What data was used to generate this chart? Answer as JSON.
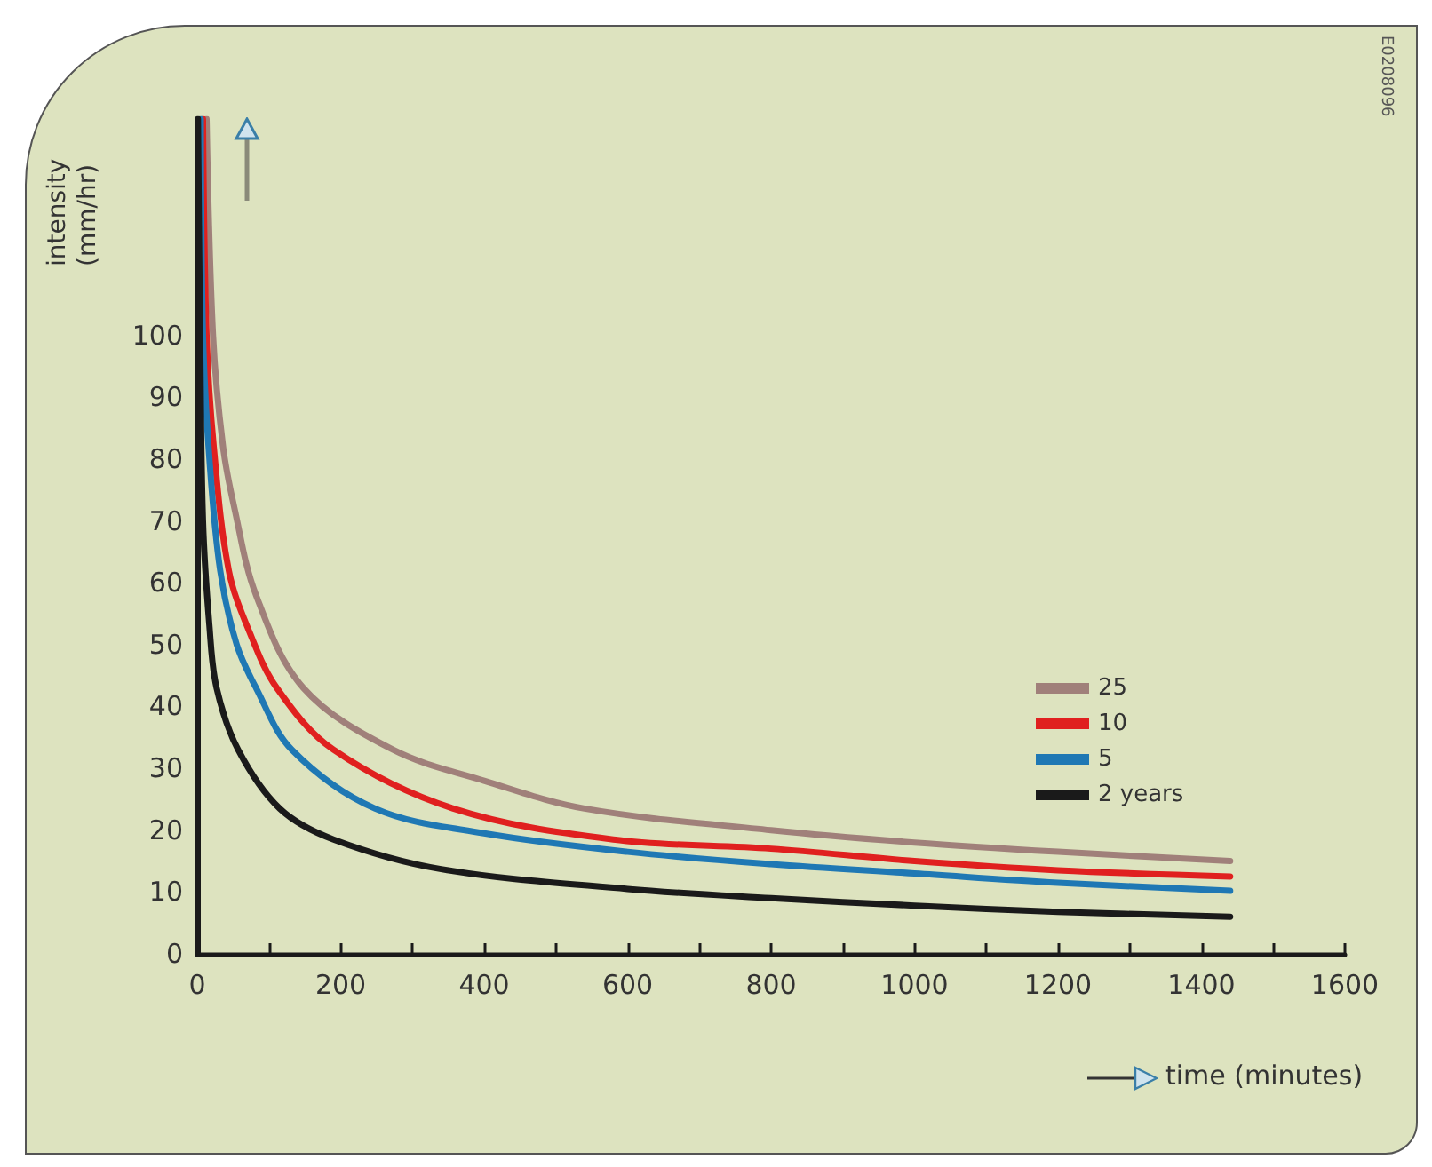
{
  "chart_data": {
    "type": "line",
    "xlabel": "time (minutes)",
    "ylabel": "intensity\n(mm/hr)",
    "annotations": [
      "E0208096"
    ],
    "xlim": [
      0,
      1600
    ],
    "ylim": [
      0,
      135
    ],
    "xticks": [
      0,
      {
        "value": 100,
        "label": null
      },
      200,
      {
        "value": 300,
        "label": null
      },
      400,
      {
        "value": 500,
        "label": null
      },
      600,
      {
        "value": 700,
        "label": null
      },
      800,
      {
        "value": 900,
        "label": null
      },
      1000,
      {
        "value": 1100,
        "label": null
      },
      1200,
      {
        "value": 1300,
        "label": null
      },
      1400,
      {
        "value": 1500,
        "label": null
      },
      1600
    ],
    "yticks": [
      0,
      10,
      20,
      30,
      40,
      50,
      60,
      70,
      80,
      90,
      100
    ],
    "grid": false,
    "legend": "right",
    "marker": "none",
    "line_style": "solid",
    "series": [
      {
        "name": "25",
        "color": "#a0807a",
        "x": [
          13,
          22,
          36,
          52,
          82,
          148,
          273,
          400,
          540,
          800,
          1000,
          1200,
          1440
        ],
        "values": [
          135,
          100,
          82,
          72,
          58,
          43,
          33,
          28,
          23.5,
          20,
          18,
          16.5,
          15
        ]
      },
      {
        "name": "10",
        "color": "#e0201f",
        "x": [
          8,
          13,
          23,
          44,
          73,
          111,
          190,
          357,
          580,
          800,
          1000,
          1200,
          1440
        ],
        "values": [
          135,
          100,
          82,
          62,
          52,
          43,
          33,
          23.5,
          18.5,
          17,
          15,
          13.5,
          12.5
        ]
      },
      {
        "name": "5",
        "color": "#1f78b4",
        "x": [
          5,
          8,
          17,
          32,
          55,
          82,
          132,
          248,
          400,
          600,
          800,
          1000,
          1200,
          1440
        ],
        "values": [
          135,
          100,
          80,
          62,
          50,
          43,
          33,
          23.5,
          19.5,
          16.5,
          14.5,
          13,
          11.5,
          10.2
        ]
      },
      {
        "name": "2 years",
        "color": "#1a1a1a",
        "x": [
          1,
          4,
          8,
          17,
          27,
          57,
          115,
          190,
          340,
          600,
          800,
          1000,
          1200,
          1440
        ],
        "values": [
          135,
          100,
          70,
          53,
          43,
          33,
          23.5,
          18.5,
          13.7,
          10.5,
          9,
          7.8,
          6.8,
          6
        ]
      }
    ]
  }
}
